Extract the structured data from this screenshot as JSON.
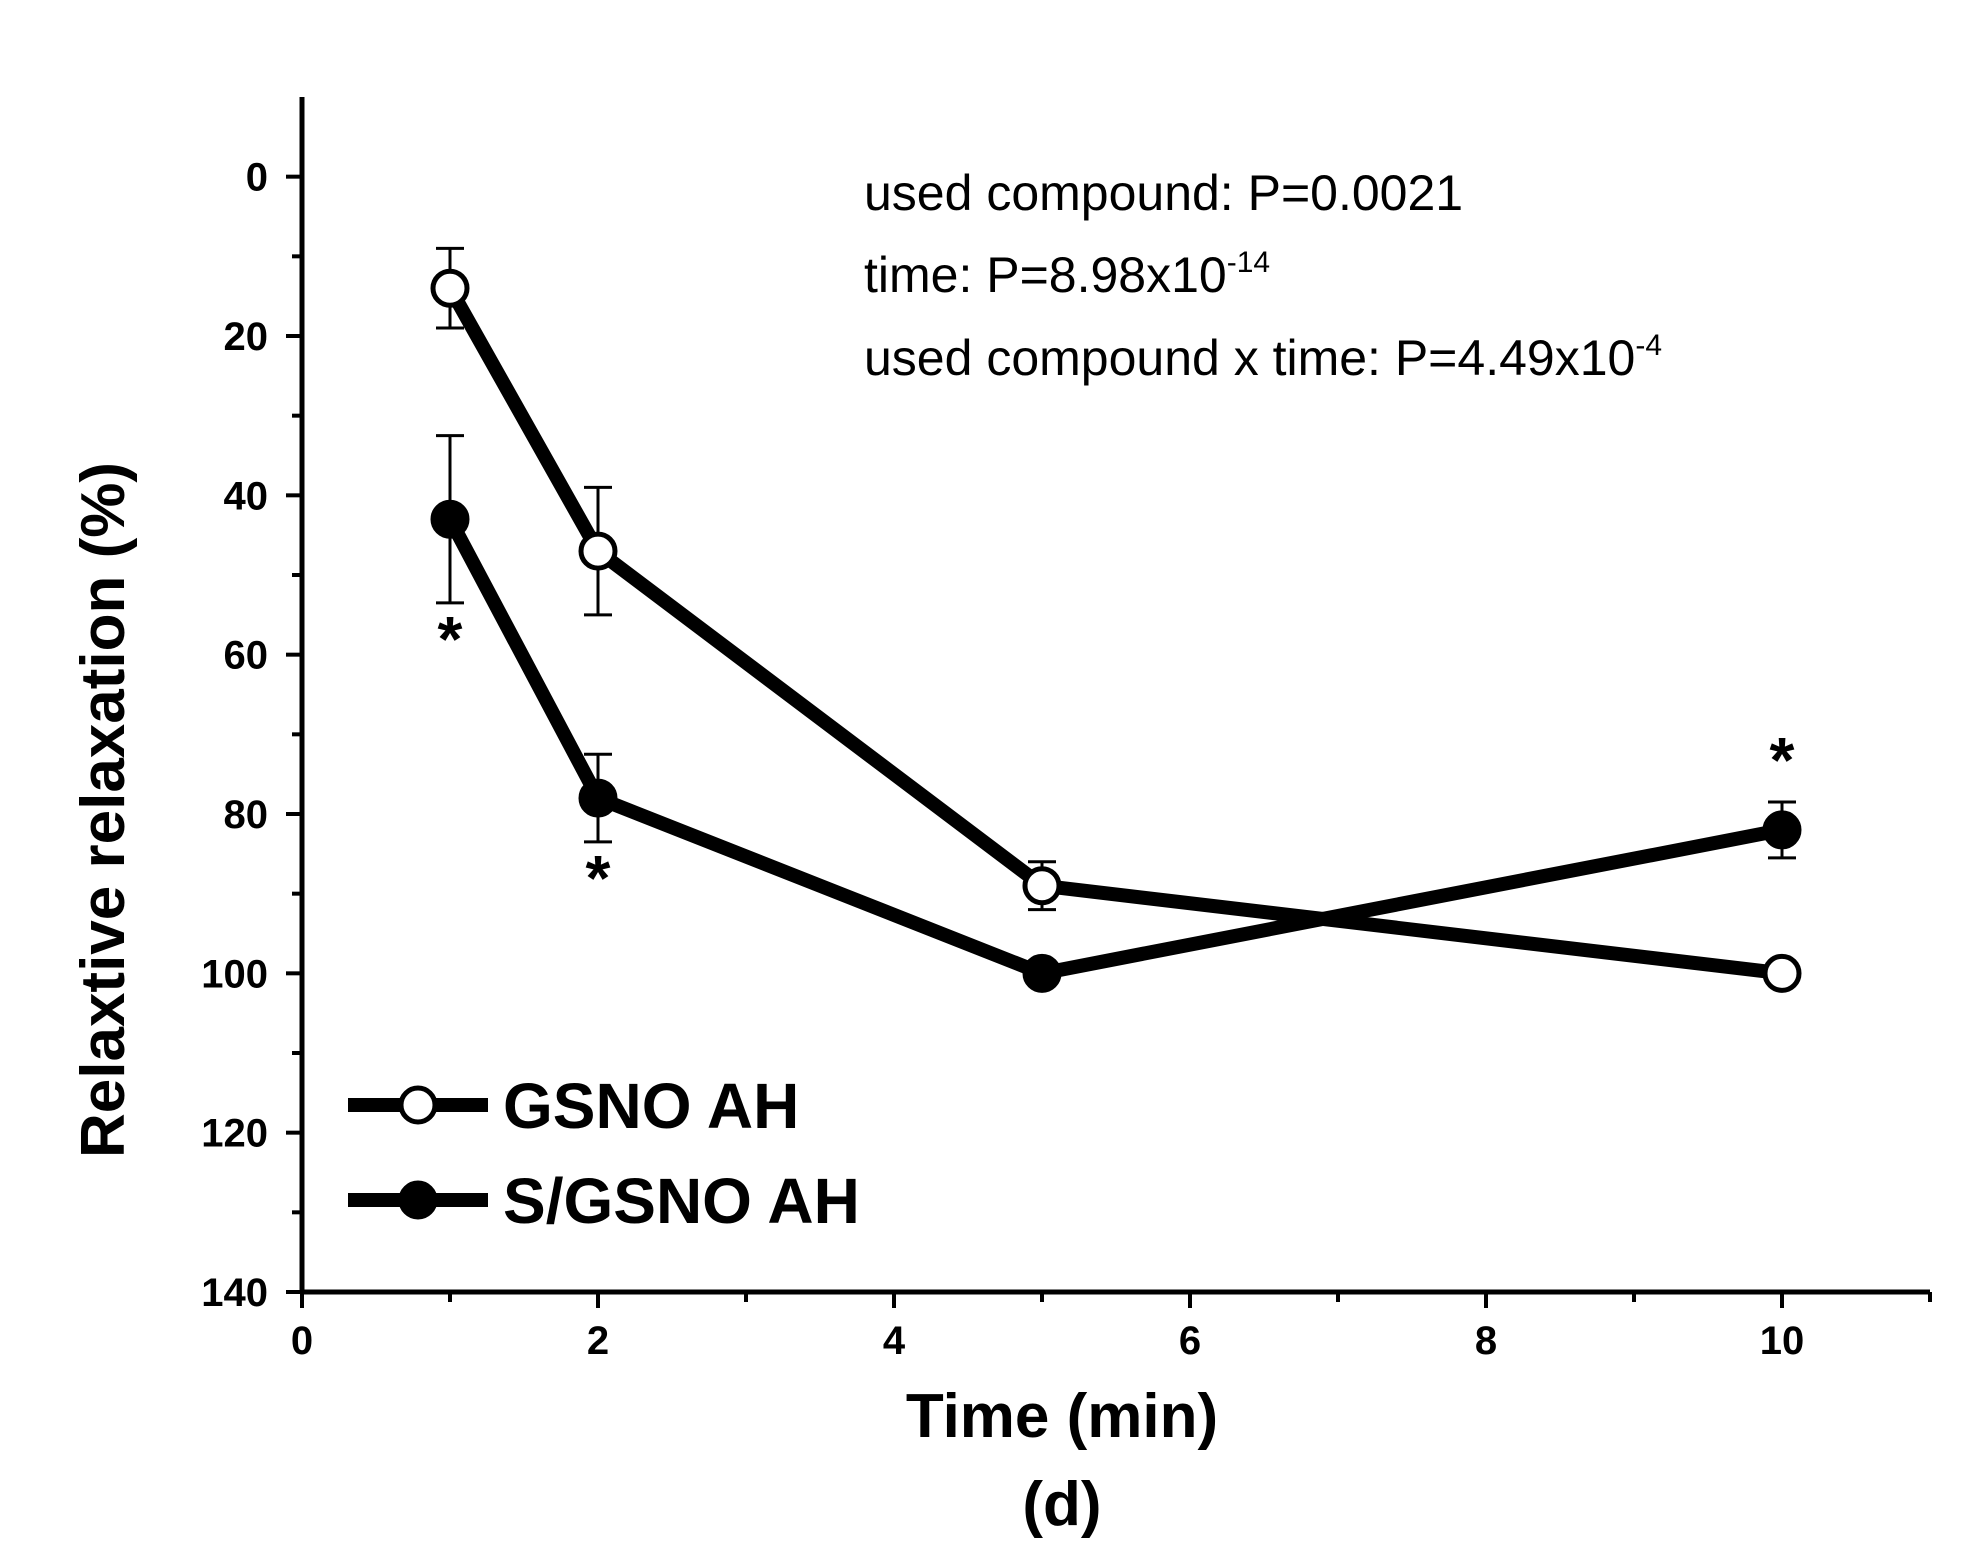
{
  "chart_data": {
    "type": "line",
    "title": "",
    "xlabel": "Time (min)",
    "ylabel": "Relaxtive relaxation (%)",
    "panel_label": "(d)",
    "xlim": [
      0,
      11
    ],
    "ylim": [
      140,
      -10
    ],
    "y_inverted": true,
    "x_ticks": [
      0,
      2,
      4,
      6,
      8,
      10
    ],
    "x_tick_labels": [
      "0",
      "2",
      "4",
      "6",
      "8",
      "10"
    ],
    "y_ticks": [
      0,
      20,
      40,
      60,
      80,
      100,
      120,
      140
    ],
    "y_tick_labels": [
      "0",
      "20",
      "40",
      "60",
      "80",
      "100",
      "120",
      "140"
    ],
    "grid": false,
    "legend_position": "bottom-left",
    "series": [
      {
        "name": "GSNO AH",
        "marker": "open-circle",
        "x": [
          1,
          2,
          5,
          10
        ],
        "values": [
          14,
          47,
          89,
          100
        ],
        "errors": [
          5,
          8,
          3,
          0
        ]
      },
      {
        "name": "S/GSNO AH",
        "marker": "filled-circle",
        "x": [
          1,
          2,
          5,
          10
        ],
        "values": [
          43,
          78,
          100,
          82
        ],
        "errors": [
          10.5,
          5.5,
          0,
          3.5
        ]
      }
    ],
    "significance_marks": [
      {
        "x": 1,
        "text": "*",
        "placement": "below"
      },
      {
        "x": 2,
        "text": "*",
        "placement": "below"
      },
      {
        "x": 10,
        "text": "*",
        "placement": "above"
      }
    ],
    "annotations": [
      {
        "id": "compound",
        "prefix": "used compound: P=0.0021",
        "superscript": ""
      },
      {
        "id": "time",
        "prefix": "time: P=8.98x10",
        "superscript": "-14"
      },
      {
        "id": "interaction",
        "prefix": "used compound x time: P=4.49x10",
        "superscript": "-4"
      }
    ]
  }
}
